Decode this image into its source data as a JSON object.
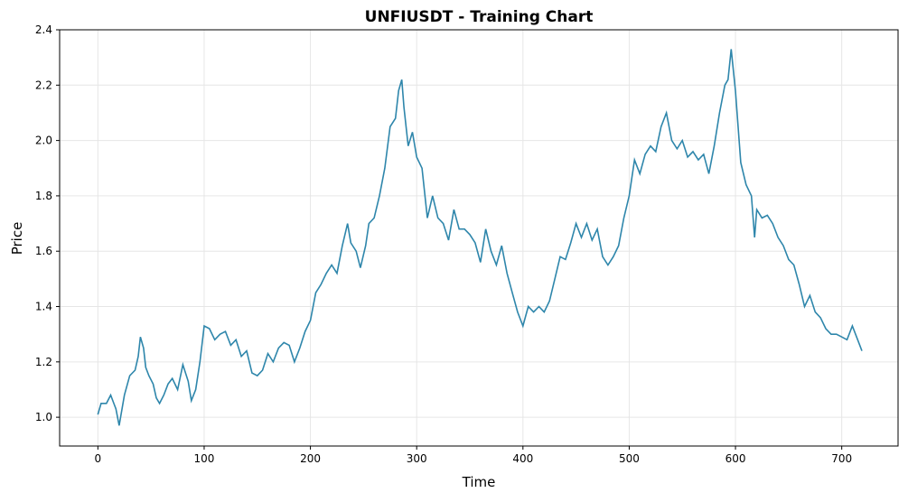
{
  "chart_data": {
    "type": "line",
    "title": "UNFIUSDT - Training Chart",
    "xlabel": "Time",
    "ylabel": "Price",
    "x": [
      0,
      3,
      8,
      12,
      17,
      20,
      25,
      30,
      35,
      38,
      40,
      43,
      45,
      48,
      52,
      55,
      58,
      62,
      66,
      70,
      75,
      80,
      85,
      88,
      92,
      96,
      100,
      105,
      110,
      115,
      120,
      125,
      130,
      135,
      140,
      145,
      150,
      155,
      160,
      165,
      170,
      175,
      180,
      185,
      190,
      195,
      200,
      205,
      210,
      215,
      220,
      225,
      230,
      235,
      238,
      243,
      247,
      252,
      255,
      260,
      265,
      270,
      275,
      280,
      283,
      286,
      288,
      292,
      296,
      300,
      305,
      310,
      315,
      320,
      325,
      330,
      335,
      340,
      345,
      350,
      355,
      360,
      365,
      370,
      375,
      380,
      385,
      390,
      395,
      400,
      405,
      410,
      415,
      420,
      425,
      430,
      435,
      440,
      445,
      450,
      455,
      460,
      465,
      470,
      475,
      480,
      485,
      490,
      495,
      500,
      505,
      510,
      515,
      520,
      525,
      530,
      535,
      540,
      545,
      550,
      555,
      560,
      565,
      570,
      575,
      580,
      585,
      590,
      593,
      596,
      600,
      605,
      610,
      615,
      618,
      620,
      625,
      630,
      635,
      640,
      645,
      650,
      655,
      660,
      665,
      670,
      675,
      680,
      685,
      690,
      695,
      700,
      705,
      710,
      715,
      719
    ],
    "series": [
      {
        "name": "Price",
        "color": "#2e86ab",
        "values": [
          1.01,
          1.05,
          1.05,
          1.08,
          1.03,
          0.97,
          1.08,
          1.15,
          1.17,
          1.22,
          1.29,
          1.25,
          1.18,
          1.15,
          1.12,
          1.07,
          1.05,
          1.08,
          1.12,
          1.14,
          1.1,
          1.19,
          1.13,
          1.06,
          1.1,
          1.2,
          1.33,
          1.32,
          1.28,
          1.3,
          1.31,
          1.26,
          1.28,
          1.22,
          1.24,
          1.16,
          1.15,
          1.17,
          1.23,
          1.2,
          1.25,
          1.27,
          1.26,
          1.2,
          1.25,
          1.31,
          1.35,
          1.45,
          1.48,
          1.52,
          1.55,
          1.52,
          1.62,
          1.7,
          1.63,
          1.6,
          1.54,
          1.62,
          1.7,
          1.72,
          1.8,
          1.9,
          2.05,
          2.08,
          2.18,
          2.22,
          2.12,
          1.98,
          2.03,
          1.94,
          1.9,
          1.72,
          1.8,
          1.72,
          1.7,
          1.64,
          1.75,
          1.68,
          1.68,
          1.66,
          1.63,
          1.56,
          1.68,
          1.6,
          1.55,
          1.62,
          1.52,
          1.45,
          1.38,
          1.33,
          1.4,
          1.38,
          1.4,
          1.38,
          1.42,
          1.5,
          1.58,
          1.57,
          1.63,
          1.7,
          1.65,
          1.7,
          1.64,
          1.68,
          1.58,
          1.55,
          1.58,
          1.62,
          1.72,
          1.8,
          1.93,
          1.88,
          1.95,
          1.98,
          1.96,
          2.05,
          2.1,
          2.0,
          1.97,
          2.0,
          1.94,
          1.96,
          1.93,
          1.95,
          1.88,
          1.98,
          2.1,
          2.2,
          2.22,
          2.33,
          2.18,
          1.92,
          1.84,
          1.8,
          1.65,
          1.75,
          1.72,
          1.73,
          1.7,
          1.65,
          1.62,
          1.57,
          1.55,
          1.48,
          1.4,
          1.44,
          1.38,
          1.36,
          1.32,
          1.3,
          1.3,
          1.29,
          1.28,
          1.33,
          1.28,
          1.24
        ]
      }
    ],
    "xlim": [
      -36,
      753
    ],
    "ylim": [
      0.896,
      2.4
    ],
    "xticks": [
      0,
      100,
      200,
      300,
      400,
      500,
      600,
      700
    ],
    "yticks": [
      {
        "value": 1.0,
        "label": "1.0"
      },
      {
        "value": 1.2,
        "label": "1.2"
      },
      {
        "value": 1.4,
        "label": "1.4"
      },
      {
        "value": 1.6,
        "label": "1.6"
      },
      {
        "value": 1.8,
        "label": "1.8"
      },
      {
        "value": 2.0,
        "label": "2.0"
      },
      {
        "value": 2.2,
        "label": "2.2"
      },
      {
        "value": 2.4,
        "label": "2.4"
      }
    ],
    "grid": true
  }
}
